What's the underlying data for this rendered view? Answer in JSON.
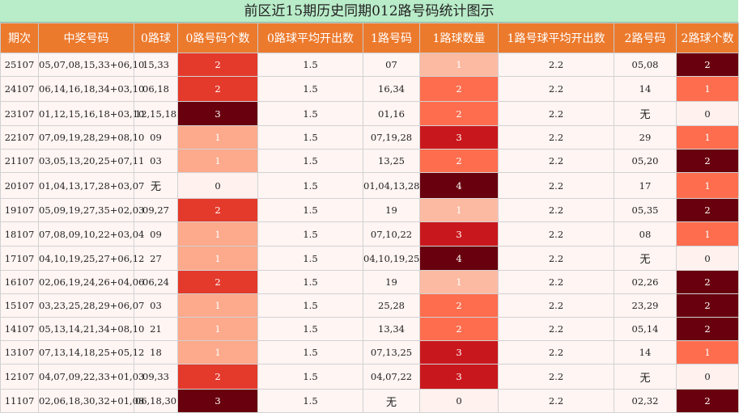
{
  "title": "前区近15期历史同期012路号码统计图示",
  "headers": [
    "期次",
    "中奖号码",
    "0路球",
    "0路号码个数",
    "0路球平均开出数",
    "1路号码",
    "1路球数量",
    "1路号球平均开出数",
    "2路号码",
    "2路球个数"
  ],
  "colors": {
    "0": "#fef1ee",
    "1": "#fca98c",
    "2": "#e43a2c",
    "3": "#69000d",
    "4": "#69000d",
    "r1_1": "#fcbaa2",
    "r1_2": "#fd6d4e",
    "r1_3": "#c9181d",
    "r2_1": "#fd6d4e",
    "r2_2": "#69000d"
  },
  "rows": [
    {
      "period": "25107",
      "numbers": "05,07,08,15,33+06,10",
      "r0": "15,33",
      "c0": "2",
      "a0": "1.5",
      "r1": "07",
      "c1": "1",
      "a1": "2.2",
      "r2": "05,08",
      "c2": "2"
    },
    {
      "period": "24107",
      "numbers": "06,14,16,18,34+03,10",
      "r0": "06,18",
      "c0": "2",
      "a0": "1.5",
      "r1": "16,34",
      "c1": "2",
      "a1": "2.2",
      "r2": "14",
      "c2": "1"
    },
    {
      "period": "23107",
      "numbers": "01,12,15,16,18+03,10",
      "r0": "12,15,18",
      "c0": "3",
      "a0": "1.5",
      "r1": "01,16",
      "c1": "2",
      "a1": "2.2",
      "r2": "无",
      "c2": "0"
    },
    {
      "period": "22107",
      "numbers": "07,09,19,28,29+08,10",
      "r0": "09",
      "c0": "1",
      "a0": "1.5",
      "r1": "07,19,28",
      "c1": "3",
      "a1": "2.2",
      "r2": "29",
      "c2": "1"
    },
    {
      "period": "21107",
      "numbers": "03,05,13,20,25+07,11",
      "r0": "03",
      "c0": "1",
      "a0": "1.5",
      "r1": "13,25",
      "c1": "2",
      "a1": "2.2",
      "r2": "05,20",
      "c2": "2"
    },
    {
      "period": "20107",
      "numbers": "01,04,13,17,28+03,07",
      "r0": "无",
      "c0": "0",
      "a0": "1.5",
      "r1": "01,04,13,28",
      "c1": "4",
      "a1": "2.2",
      "r2": "17",
      "c2": "1"
    },
    {
      "period": "19107",
      "numbers": "05,09,19,27,35+02,03",
      "r0": "09,27",
      "c0": "2",
      "a0": "1.5",
      "r1": "19",
      "c1": "1",
      "a1": "2.2",
      "r2": "05,35",
      "c2": "2"
    },
    {
      "period": "18107",
      "numbers": "07,08,09,10,22+03,04",
      "r0": "09",
      "c0": "1",
      "a0": "1.5",
      "r1": "07,10,22",
      "c1": "3",
      "a1": "2.2",
      "r2": "08",
      "c2": "1"
    },
    {
      "period": "17107",
      "numbers": "04,10,19,25,27+06,12",
      "r0": "27",
      "c0": "1",
      "a0": "1.5",
      "r1": "04,10,19,25",
      "c1": "4",
      "a1": "2.2",
      "r2": "无",
      "c2": "0"
    },
    {
      "period": "16107",
      "numbers": "02,06,19,24,26+04,06",
      "r0": "06,24",
      "c0": "2",
      "a0": "1.5",
      "r1": "19",
      "c1": "1",
      "a1": "2.2",
      "r2": "02,26",
      "c2": "2"
    },
    {
      "period": "15107",
      "numbers": "03,23,25,28,29+06,07",
      "r0": "03",
      "c0": "1",
      "a0": "1.5",
      "r1": "25,28",
      "c1": "2",
      "a1": "2.2",
      "r2": "23,29",
      "c2": "2"
    },
    {
      "period": "14107",
      "numbers": "05,13,14,21,34+08,10",
      "r0": "21",
      "c0": "1",
      "a0": "1.5",
      "r1": "13,34",
      "c1": "2",
      "a1": "2.2",
      "r2": "05,14",
      "c2": "2"
    },
    {
      "period": "13107",
      "numbers": "07,13,14,18,25+05,12",
      "r0": "18",
      "c0": "1",
      "a0": "1.5",
      "r1": "07,13,25",
      "c1": "3",
      "a1": "2.2",
      "r2": "14",
      "c2": "1"
    },
    {
      "period": "12107",
      "numbers": "04,07,09,22,33+01,03",
      "r0": "09,33",
      "c0": "2",
      "a0": "1.5",
      "r1": "04,07,22",
      "c1": "3",
      "a1": "2.2",
      "r2": "无",
      "c2": "0"
    },
    {
      "period": "11107",
      "numbers": "02,06,18,30,32+01,08",
      "r0": "06,18,30",
      "c0": "3",
      "a0": "1.5",
      "r1": "无",
      "c1": "0",
      "a1": "2.2",
      "r2": "02,32",
      "c2": "2"
    }
  ]
}
